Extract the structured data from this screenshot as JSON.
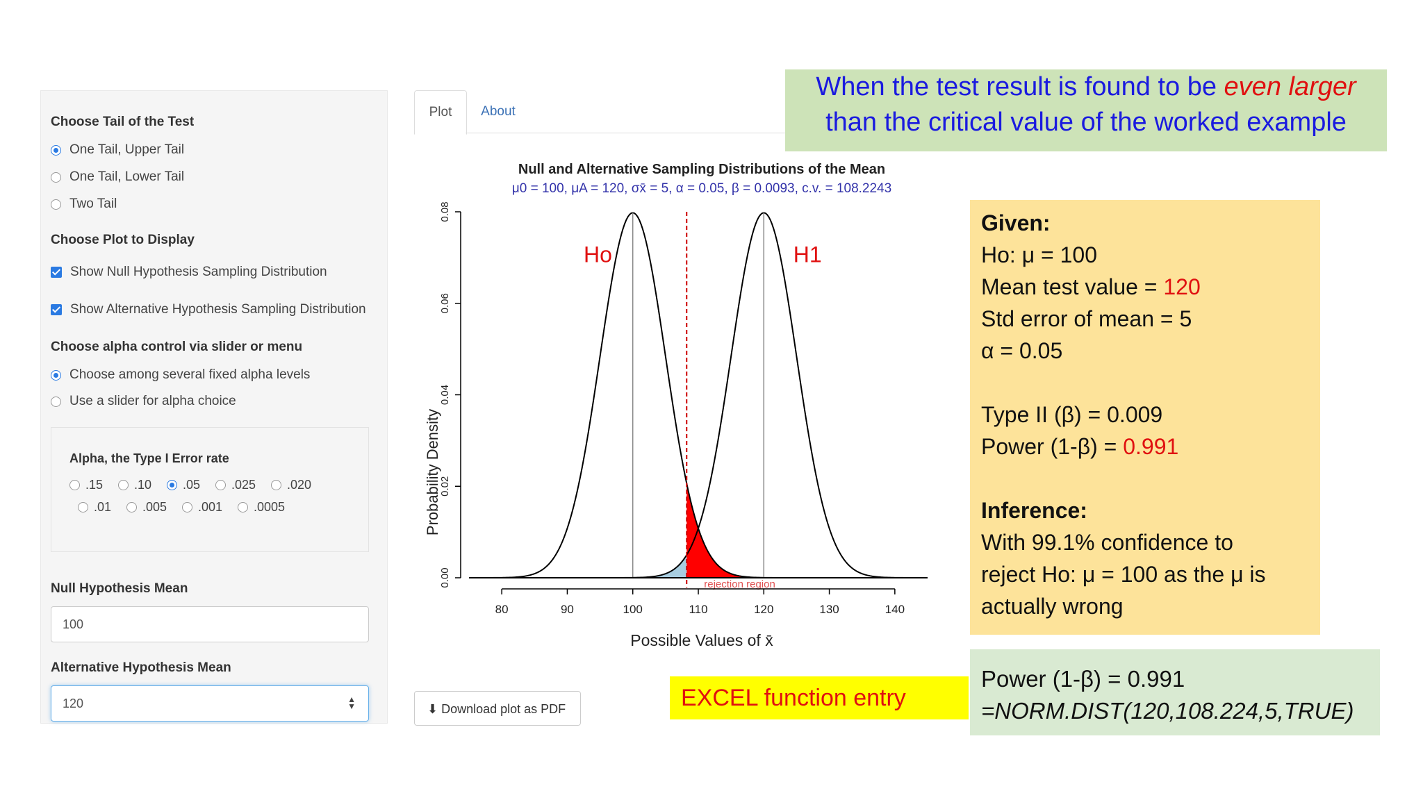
{
  "sidebar": {
    "tail_title": "Choose Tail of the Test",
    "tail_options": [
      "One Tail, Upper Tail",
      "One Tail, Lower Tail",
      "Two Tail"
    ],
    "plot_title": "Choose Plot to Display",
    "plot_options": [
      "Show Null Hypothesis Sampling Distribution",
      "Show Alternative Hypothesis Sampling Distribution"
    ],
    "alpha_control_title": "Choose alpha control via slider or menu",
    "alpha_control_options": [
      "Choose among several fixed alpha levels",
      "Use a slider for alpha choice"
    ],
    "alpha_title": "Alpha, the Type I Error rate",
    "alpha_levels_row1": [
      ".15",
      ".10",
      ".05",
      ".025",
      ".020"
    ],
    "alpha_levels_row2": [
      ".01",
      ".005",
      ".001",
      ".0005"
    ],
    "null_mean_label": "Null Hypothesis Mean",
    "null_mean_value": "100",
    "alt_mean_label": "Alternative Hypothesis Mean",
    "alt_mean_value": "120"
  },
  "tabs": [
    "Plot",
    "About"
  ],
  "download_label": "Download plot as PDF",
  "chart_data": {
    "type": "line",
    "title": "Null and Alternative Sampling Distributions of the Mean",
    "subtitle": "μ0 = 100, μA = 120, σx̄ = 5, α = 0.05, β = 0.0093, c.v. = 108.2243",
    "xlabel": "Possible Values of x̄",
    "ylabel": "Probability Density",
    "xlim": [
      75,
      145
    ],
    "ylim": [
      0,
      0.08
    ],
    "x_ticks": [
      "80",
      "90",
      "100",
      "110",
      "120",
      "130",
      "140"
    ],
    "y_ticks": [
      "0.00",
      "0.02",
      "0.04",
      "0.06",
      "0.08"
    ],
    "series": [
      {
        "name": "Ho",
        "mean": 100,
        "sd": 5
      },
      {
        "name": "H1",
        "mean": 120,
        "sd": 5
      }
    ],
    "critical_value": 108.2243,
    "annotation": "rejection region",
    "colors": {
      "curve": "#000000",
      "alpha_fill": "#ff0000",
      "beta_fill": "#a8cde0",
      "cv_line": "#cc0000"
    }
  },
  "callout": {
    "line1_pre": "When the test result is found to be ",
    "line1_em": "even larger",
    "line2": "than  the critical value of the worked example"
  },
  "given": {
    "title": "Given:",
    "ho": "Ho:  μ = 100",
    "mean_pre": "Mean test value = ",
    "mean_val": "120",
    "se": "Std error of mean = 5",
    "alpha": "α =  0.05",
    "type2": "Type II (β) = 0.009",
    "power_pre": "Power (1-β) = ",
    "power_val": "0.991",
    "inference_title": "Inference:",
    "inference_line1": "With 99.1% confidence to",
    "inference_line2": "reject Ho:  μ = 100 as the μ is",
    "inference_line3": "actually wrong"
  },
  "excel_label": "EXCEL function entry",
  "formula": {
    "line1": "Power (1-β) = 0.991",
    "line2": "=NORM.DIST(120,108.224,5,TRUE)"
  }
}
